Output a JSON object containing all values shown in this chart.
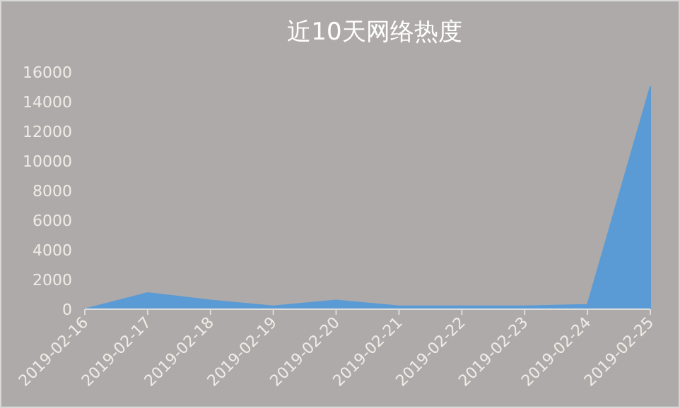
{
  "chart_data": {
    "type": "area",
    "title": "近10天网络热度",
    "categories": [
      "2019-02-16",
      "2019-02-17",
      "2019-02-18",
      "2019-02-19",
      "2019-02-20",
      "2019-02-21",
      "2019-02-22",
      "2019-02-23",
      "2019-02-24",
      "2019-02-25"
    ],
    "values": [
      0,
      1100,
      600,
      200,
      600,
      200,
      200,
      200,
      300,
      15000
    ],
    "color": "#5b9bd5",
    "ylim": [
      0,
      16000
    ],
    "yticks": [
      0,
      2000,
      4000,
      6000,
      8000,
      10000,
      12000,
      14000,
      16000
    ],
    "grid": false
  }
}
